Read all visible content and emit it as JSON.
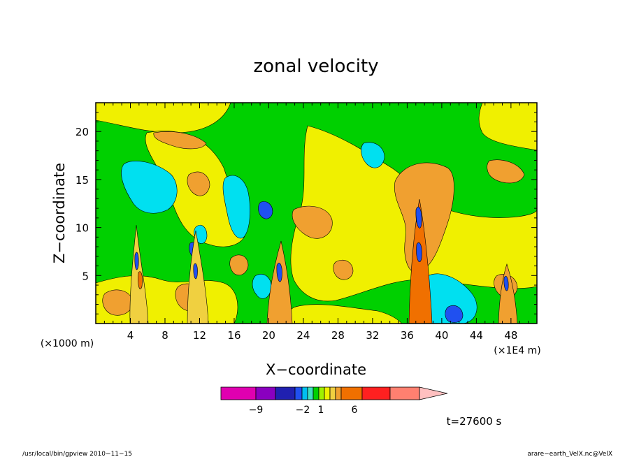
{
  "chart_data": {
    "type": "heatmap",
    "title": "zonal velocity",
    "xlabel": "X−coordinate",
    "ylabel": "Z−coordinate",
    "x_range": [
      0,
      51
    ],
    "y_range": [
      0,
      23
    ],
    "x_ticks": [
      "4",
      "8",
      "12",
      "16",
      "20",
      "24",
      "28",
      "32",
      "36",
      "40",
      "44",
      "48"
    ],
    "x_tick_values": [
      4,
      8,
      12,
      16,
      20,
      24,
      28,
      32,
      36,
      40,
      44,
      48
    ],
    "y_ticks": [
      "5",
      "10",
      "15",
      "20"
    ],
    "y_tick_values": [
      5,
      10,
      15,
      20
    ],
    "x_unit_left": "(×1000 m)",
    "x_unit_right": "(×1E4 m)",
    "colorbar": {
      "labels": [
        "−9",
        "−2",
        "1",
        "6"
      ],
      "colors": [
        "#e000b0",
        "#8a00c0",
        "#2020b0",
        "#2050f0",
        "#00c0f0",
        "#40e0c0",
        "#00d000",
        "#a0f000",
        "#f0f000",
        "#f0d040",
        "#f0a030",
        "#f07000",
        "#ff2020",
        "#ff8070",
        "#ffc0c0"
      ]
    },
    "time_label": "t=27600 s",
    "footer_left": "/usr/local/bin/gpview   2010−11−15",
    "footer_right": "arare−earth_VelX.nc@VelX"
  }
}
